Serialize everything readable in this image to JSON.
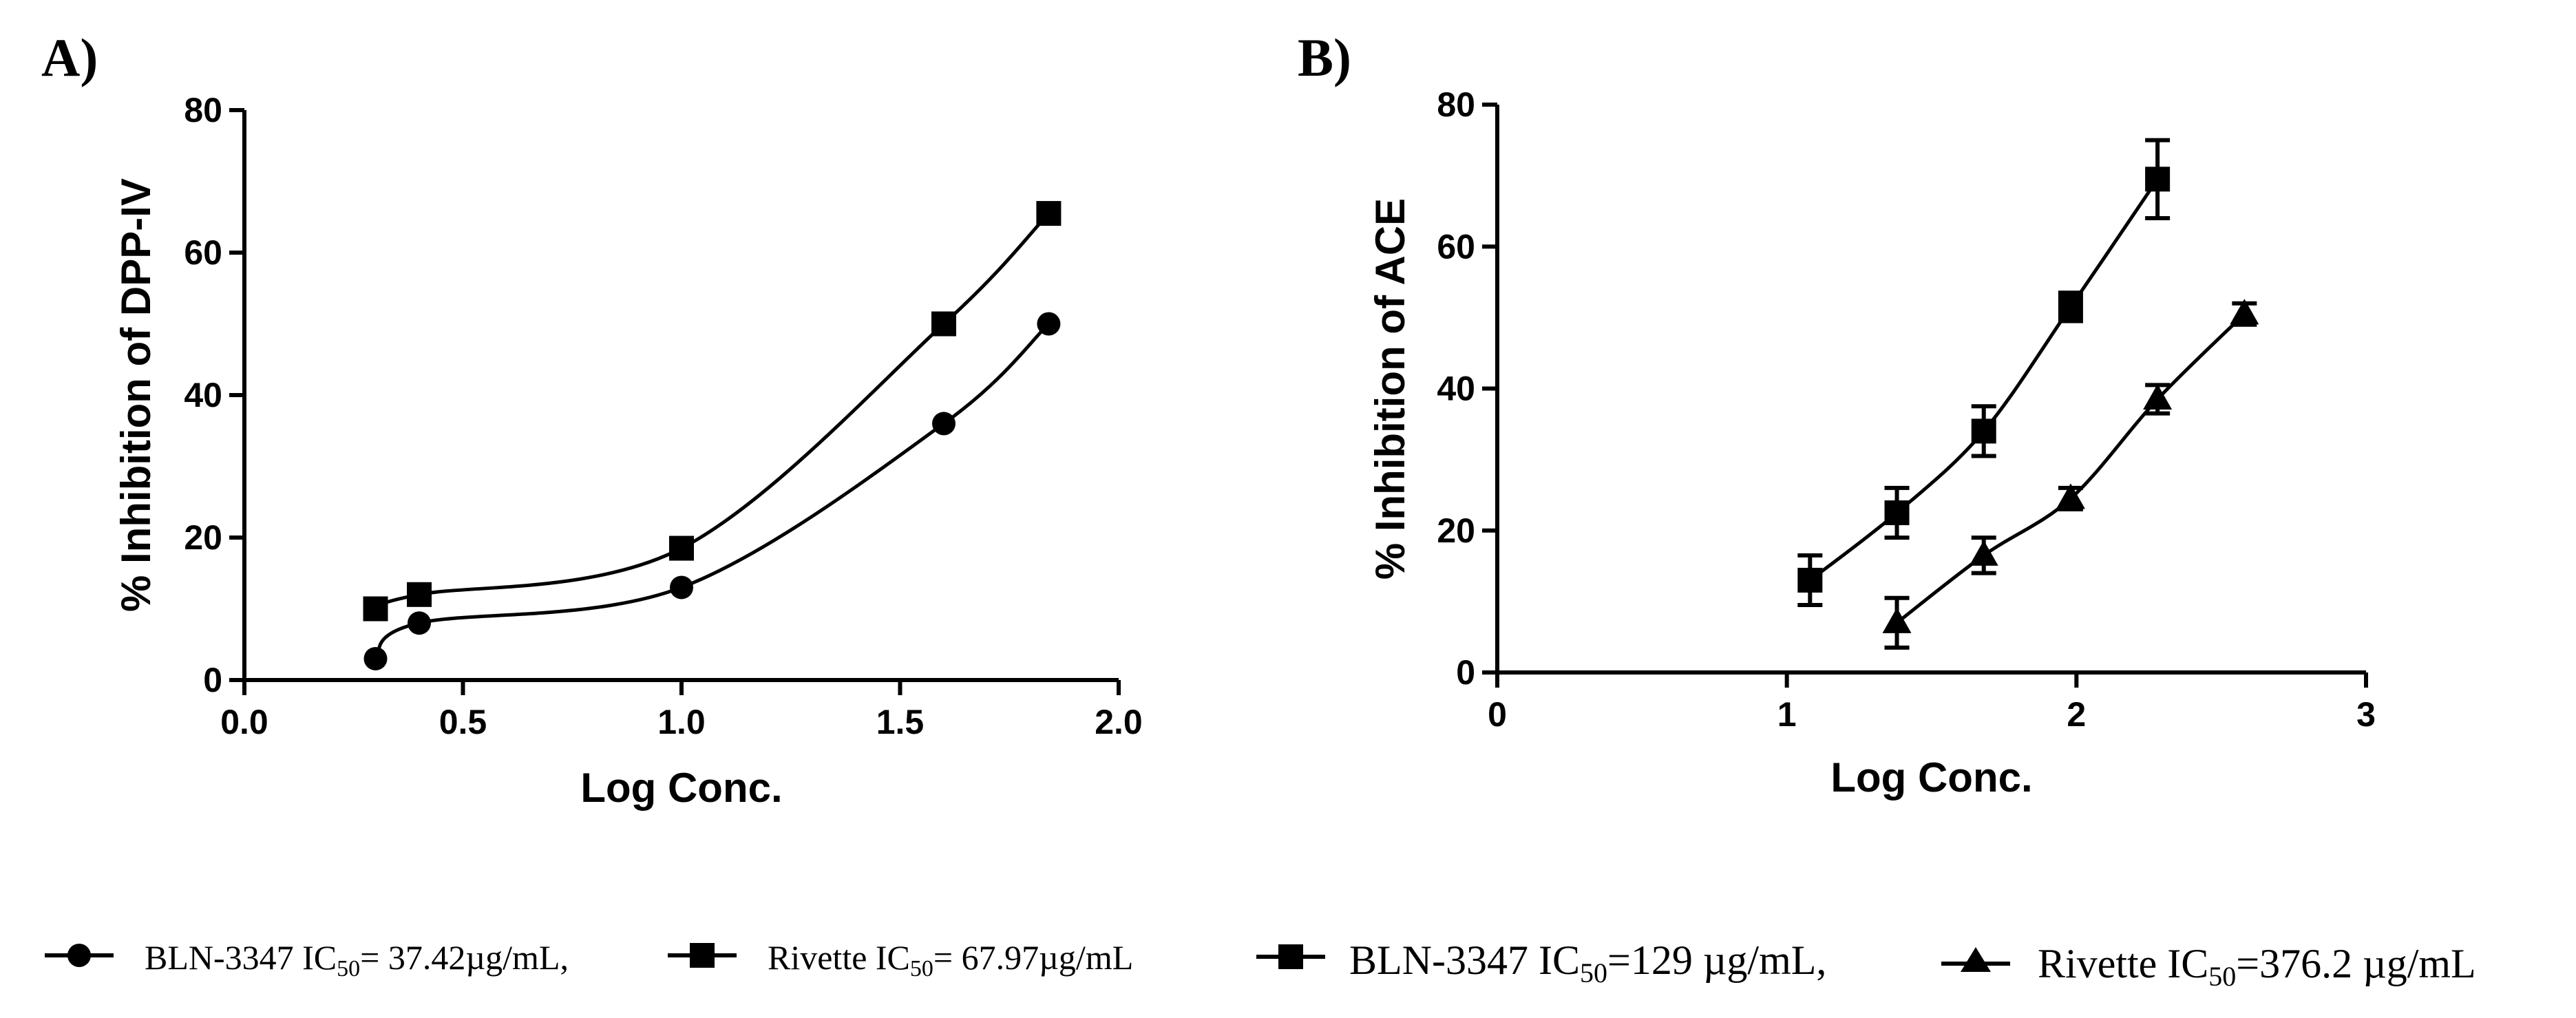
{
  "chart_data": [
    {
      "type": "line",
      "panel_label": "A)",
      "xlabel": "Log Conc.",
      "ylabel": "% Inhibition of DPP-IV",
      "xlim": [
        0.0,
        2.0
      ],
      "ylim": [
        0,
        80
      ],
      "xticks": [
        0.0,
        0.5,
        1.0,
        1.5,
        2.0
      ],
      "xtick_labels": [
        "0.0",
        "0.5",
        "1.0",
        "1.5",
        "2.0"
      ],
      "yticks": [
        0,
        20,
        40,
        60,
        80
      ],
      "ytick_labels": [
        "0",
        "20",
        "40",
        "60",
        "80"
      ],
      "series": [
        {
          "name": "BLN-3347",
          "marker": "circle",
          "x": [
            0.3,
            0.4,
            1.0,
            1.6,
            1.84
          ],
          "y": [
            3,
            8,
            13,
            36,
            50
          ]
        },
        {
          "name": "Rivette",
          "marker": "square",
          "x": [
            0.3,
            0.4,
            1.0,
            1.6,
            1.84
          ],
          "y": [
            10,
            12,
            18.5,
            50,
            65.5
          ]
        }
      ]
    },
    {
      "type": "line",
      "panel_label": "B)",
      "xlabel": "Log Conc.",
      "ylabel": "% Inhibition of ACE",
      "xlim": [
        0,
        3
      ],
      "ylim": [
        0,
        80
      ],
      "xticks": [
        0,
        1,
        2,
        3
      ],
      "xtick_labels": [
        "0",
        "1",
        "2",
        "3"
      ],
      "yticks": [
        0,
        20,
        40,
        60,
        80
      ],
      "ytick_labels": [
        "0",
        "20",
        "40",
        "60",
        "80"
      ],
      "series": [
        {
          "name": "BLN-3347",
          "marker": "square",
          "x": [
            1.08,
            1.38,
            1.68,
            1.98,
            2.28
          ],
          "y": [
            13,
            22.5,
            34,
            51.5,
            69.5
          ],
          "err": [
            3.5,
            3.5,
            3.5,
            2,
            5.5
          ]
        },
        {
          "name": "Rivette",
          "marker": "triangle",
          "x": [
            1.38,
            1.68,
            1.98,
            2.28,
            2.58
          ],
          "y": [
            7,
            16.5,
            24.5,
            38.5,
            50.5
          ],
          "err": [
            3.5,
            2.5,
            1.5,
            2,
            1.5
          ]
        }
      ]
    }
  ],
  "legend": [
    {
      "marker": "circle",
      "prefix": "BLN-3347 IC",
      "sub": "50",
      "suffix": "= 37.42µg/mL,"
    },
    {
      "marker": "square",
      "prefix": "Rivette IC",
      "sub": "50",
      "suffix": "= 67.97µg/mL"
    },
    {
      "marker": "square",
      "prefix": "BLN-3347 IC",
      "sub": "50",
      "suffix": "=129 µg/mL,"
    },
    {
      "marker": "triangle",
      "prefix": "Rivette IC",
      "sub": "50",
      "suffix": "=376.2 µg/mL"
    }
  ]
}
